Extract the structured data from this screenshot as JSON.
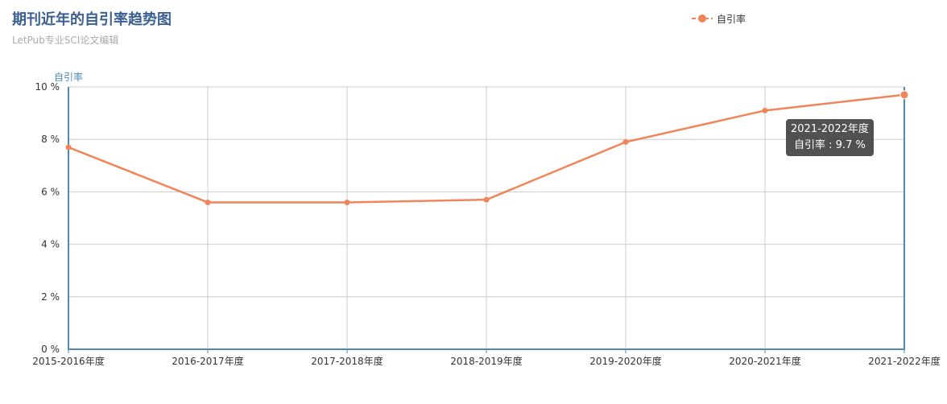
{
  "header": {
    "title": "期刊近年的自引率趋势图",
    "subtitle": "LetPub专业SCI论文编辑"
  },
  "tooltip": {
    "category": "2021-2022年度",
    "text": "自引率 : 9.7 %"
  },
  "colors": {
    "series": "#f0855a",
    "axis": "#4f8ab8",
    "grid": "#cccccc",
    "title": "#3b5f92"
  },
  "chart_data": {
    "type": "line",
    "title": "期刊近年的自引率趋势图",
    "subtitle": "LetPub专业SCI论文编辑",
    "ylabel": "自引率",
    "xlabel": "",
    "ylim": [
      0,
      10
    ],
    "y_ticks": [
      0,
      2,
      4,
      6,
      8,
      10
    ],
    "y_tick_labels": [
      "0 %",
      "2 %",
      "4 %",
      "6 %",
      "8 %",
      "10 %"
    ],
    "categories": [
      "2015-2016年度",
      "2016-2017年度",
      "2017-2018年度",
      "2018-2019年度",
      "2019-2020年度",
      "2020-2021年度",
      "2021-2022年度"
    ],
    "series": [
      {
        "name": "自引率",
        "values": [
          7.7,
          5.6,
          5.6,
          5.7,
          7.9,
          9.1,
          9.7
        ]
      }
    ],
    "grid": true,
    "legend": "top-right"
  }
}
